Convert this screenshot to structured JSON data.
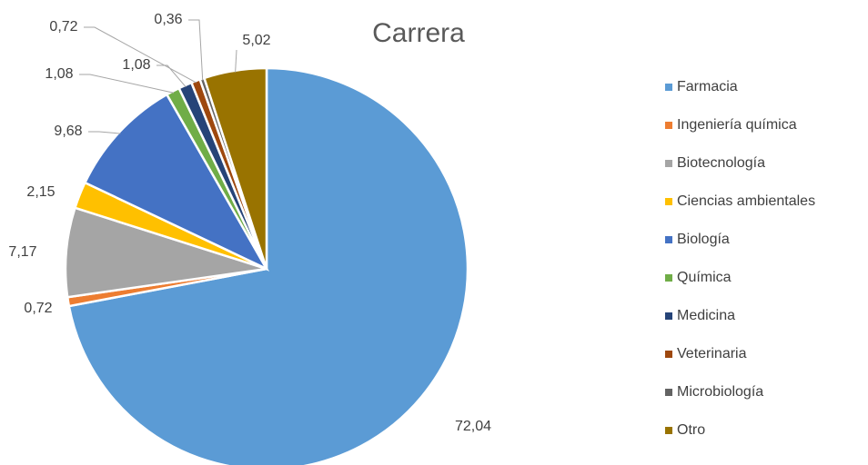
{
  "chart_data": {
    "type": "pie",
    "title": "Carrera",
    "categories": [
      "Farmacia",
      "Ingeniería química",
      "Biotecnología",
      "Ciencias ambientales",
      "Biología",
      "Química",
      "Medicina",
      "Veterinaria",
      "Microbiología",
      "Otro"
    ],
    "values": [
      72.04,
      0.72,
      7.17,
      2.15,
      9.68,
      1.08,
      1.08,
      0.72,
      0.36,
      5.02
    ],
    "value_labels": [
      "72,04",
      "0,72",
      "7,17",
      "2,15",
      "9,68",
      "1,08",
      "1,08",
      "0,72",
      "0,36",
      "5,02"
    ],
    "colors": [
      "#5b9bd5",
      "#ed7d31",
      "#a5a5a5",
      "#ffc000",
      "#4472c4",
      "#70ad47",
      "#264478",
      "#9e480e",
      "#636363",
      "#997300"
    ],
    "legend": "right"
  }
}
